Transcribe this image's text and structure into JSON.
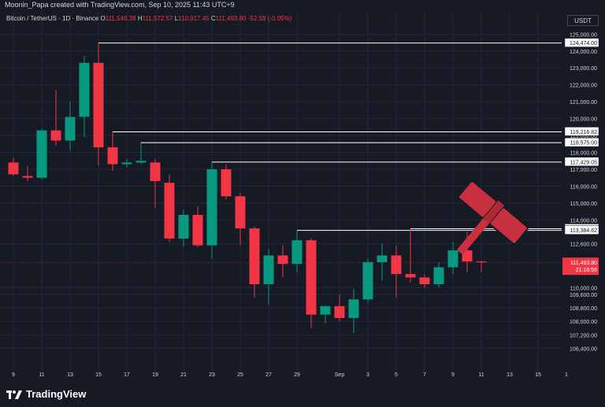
{
  "header": {
    "created_by": "Moonin_Papa created with TradingView.com, Sep 10, 2025 11:43 UTC+9",
    "currency_badge": "USDT"
  },
  "symbol_bar": {
    "symbol": "Bitcoin / TetherUS · 1D · Binance",
    "open_label": "O",
    "open": "111,546.38",
    "high_label": "H",
    "high": "111,572.57",
    "low_label": "L",
    "low": "110,917.45",
    "close_label": "C",
    "close": "111,493.80",
    "change": "-52.59 (-0.05%)"
  },
  "footer": {
    "brand": "TradingView"
  },
  "colors": {
    "background": "#161a25",
    "grid": "#222634",
    "up": "#089981",
    "down": "#f23645",
    "text": "#d1d4dc",
    "line": "#ffffff",
    "gavel": "#c9303f"
  },
  "chart_data": {
    "type": "candlestick",
    "symbol": "Bitcoin / TetherUS",
    "interval": "1D",
    "exchange": "Binance",
    "ylim": [
      105400,
      125900
    ],
    "y_ticks": [
      {
        "value": 125000,
        "label": "125,000.00"
      },
      {
        "value": 124000,
        "label": "124,000.00"
      },
      {
        "value": 123000,
        "label": "123,000.00"
      },
      {
        "value": 122000,
        "label": "122,000.00"
      },
      {
        "value": 121000,
        "label": "121,000.00"
      },
      {
        "value": 120000,
        "label": "120,000.00"
      },
      {
        "value": 119000,
        "label": "119,000.00"
      },
      {
        "value": 118000,
        "label": "118,000.00"
      },
      {
        "value": 117000,
        "label": "117,000.00"
      },
      {
        "value": 116000,
        "label": "116,000.00"
      },
      {
        "value": 115000,
        "label": "115,000.00"
      },
      {
        "value": 114000,
        "label": "114,000.00"
      },
      {
        "value": 112600,
        "label": "112,600.00"
      },
      {
        "value": 110000,
        "label": "110,000.00"
      },
      {
        "value": 109600,
        "label": "109,600.00"
      },
      {
        "value": 108800,
        "label": "108,800.00"
      },
      {
        "value": 108000,
        "label": "108,000.00"
      },
      {
        "value": 107200,
        "label": "107,200.00"
      },
      {
        "value": 106400,
        "label": "106,400.00"
      }
    ],
    "x_ticks": [
      {
        "index": 0,
        "label": "9"
      },
      {
        "index": 2,
        "label": "11"
      },
      {
        "index": 4,
        "label": "13"
      },
      {
        "index": 6,
        "label": "15"
      },
      {
        "index": 8,
        "label": "17"
      },
      {
        "index": 10,
        "label": "19"
      },
      {
        "index": 12,
        "label": "21"
      },
      {
        "index": 14,
        "label": "23"
      },
      {
        "index": 16,
        "label": "25"
      },
      {
        "index": 18,
        "label": "27"
      },
      {
        "index": 20,
        "label": "29"
      },
      {
        "index": 23,
        "label": "Sep"
      },
      {
        "index": 25,
        "label": "3"
      },
      {
        "index": 27,
        "label": "5"
      },
      {
        "index": 29,
        "label": "7"
      },
      {
        "index": 31,
        "label": "9"
      },
      {
        "index": 33,
        "label": "11"
      },
      {
        "index": 35,
        "label": "13"
      },
      {
        "index": 37,
        "label": "15"
      },
      {
        "index": 39,
        "label": "1"
      }
    ],
    "candles": [
      {
        "date": "Aug 8",
        "o": 117400,
        "h": 117700,
        "l": 116600,
        "c": 116700
      },
      {
        "date": "Aug 9",
        "o": 116600,
        "h": 117200,
        "l": 116300,
        "c": 116500
      },
      {
        "date": "Aug 10",
        "o": 116500,
        "h": 119400,
        "l": 116400,
        "c": 119300
      },
      {
        "date": "Aug 11",
        "o": 119300,
        "h": 121700,
        "l": 118400,
        "c": 118700
      },
      {
        "date": "Aug 12",
        "o": 118700,
        "h": 121000,
        "l": 118100,
        "c": 120100
      },
      {
        "date": "Aug 13",
        "o": 120100,
        "h": 123700,
        "l": 118900,
        "c": 123300
      },
      {
        "date": "Aug 14",
        "o": 123300,
        "h": 124474,
        "l": 117200,
        "c": 118300
      },
      {
        "date": "Aug 15",
        "o": 118300,
        "h": 119216.82,
        "l": 116900,
        "c": 117300
      },
      {
        "date": "Aug 16",
        "o": 117300,
        "h": 117600,
        "l": 117100,
        "c": 117400
      },
      {
        "date": "Aug 17",
        "o": 117400,
        "h": 118575,
        "l": 117300,
        "c": 117500
      },
      {
        "date": "Aug 18",
        "o": 117400,
        "h": 117600,
        "l": 114700,
        "c": 116300
      },
      {
        "date": "Aug 19",
        "o": 116200,
        "h": 116700,
        "l": 112700,
        "c": 112900
      },
      {
        "date": "Aug 20",
        "o": 112900,
        "h": 114600,
        "l": 112400,
        "c": 114300
      },
      {
        "date": "Aug 21",
        "o": 114300,
        "h": 114800,
        "l": 112400,
        "c": 112500
      },
      {
        "date": "Aug 22",
        "o": 112500,
        "h": 117429.05,
        "l": 111700,
        "c": 117000
      },
      {
        "date": "Aug 23",
        "o": 117000,
        "h": 117300,
        "l": 115200,
        "c": 115400
      },
      {
        "date": "Aug 24",
        "o": 115400,
        "h": 115600,
        "l": 112500,
        "c": 113500
      },
      {
        "date": "Aug 25",
        "o": 113500,
        "h": 113600,
        "l": 109400,
        "c": 110200
      },
      {
        "date": "Aug 26",
        "o": 110200,
        "h": 112300,
        "l": 109000,
        "c": 111900
      },
      {
        "date": "Aug 27",
        "o": 111900,
        "h": 112500,
        "l": 110600,
        "c": 111400
      },
      {
        "date": "Aug 28",
        "o": 111400,
        "h": 113384.62,
        "l": 110900,
        "c": 112800
      },
      {
        "date": "Aug 29",
        "o": 112800,
        "h": 112900,
        "l": 107600,
        "c": 108400
      },
      {
        "date": "Aug 30",
        "o": 108400,
        "h": 108900,
        "l": 107900,
        "c": 108900
      },
      {
        "date": "Aug 31",
        "o": 108900,
        "h": 109600,
        "l": 108000,
        "c": 108200
      },
      {
        "date": "Sep 1",
        "o": 108200,
        "h": 109900,
        "l": 107300,
        "c": 109300
      },
      {
        "date": "Sep 2",
        "o": 109300,
        "h": 111700,
        "l": 109100,
        "c": 111500
      },
      {
        "date": "Sep 3",
        "o": 111500,
        "h": 112600,
        "l": 110400,
        "c": 111900
      },
      {
        "date": "Sep 4",
        "o": 111900,
        "h": 112500,
        "l": 109400,
        "c": 110800
      },
      {
        "date": "Sep 5",
        "o": 110800,
        "h": 113485.9,
        "l": 110300,
        "c": 110600
      },
      {
        "date": "Sep 6",
        "o": 110600,
        "h": 110800,
        "l": 110000,
        "c": 110200
      },
      {
        "date": "Sep 7",
        "o": 110200,
        "h": 111500,
        "l": 110000,
        "c": 111200
      },
      {
        "date": "Sep 8",
        "o": 111200,
        "h": 112700,
        "l": 110800,
        "c": 112200
      },
      {
        "date": "Sep 9",
        "o": 112200,
        "h": 113300,
        "l": 110900,
        "c": 111546.38
      },
      {
        "date": "Sep 10",
        "o": 111546.38,
        "h": 111572.57,
        "l": 110917.45,
        "c": 111493.8
      }
    ],
    "horizontal_levels": [
      {
        "value": 124474,
        "label": "124,474.00",
        "from_index": 6
      },
      {
        "value": 119216.82,
        "label": "119,216.82",
        "from_index": 7
      },
      {
        "value": 118575,
        "label": "118,575.00",
        "from_index": 9
      },
      {
        "value": 117429.05,
        "label": "117,429.05",
        "from_index": 14
      },
      {
        "value": 113485.9,
        "label": "113,485.90",
        "from_index": 28
      },
      {
        "value": 113384.62,
        "label": "113,384.62",
        "from_index": 20
      }
    ],
    "last_price": {
      "value": 111493.8,
      "label": "111,493.80",
      "countdown": "21:16:56"
    },
    "grid": true,
    "annotation_icon": "gavel-icon"
  }
}
